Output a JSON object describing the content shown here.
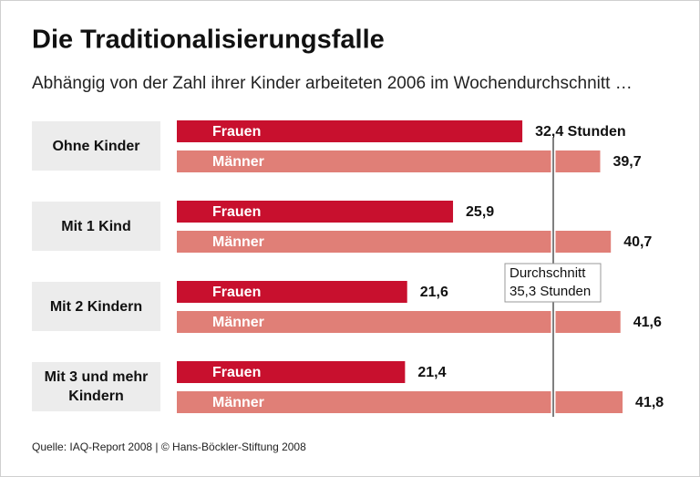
{
  "chart_data": {
    "type": "bar",
    "orientation": "horizontal",
    "title": "Die Traditionalisierungsfalle",
    "subtitle": "Abhängig von der Zahl ihrer Kinder arbeiteten 2006 im Wochendurchschnitt …",
    "categories": [
      "Ohne Kinder",
      "Mit 1 Kind",
      "Mit 2 Kindern",
      "Mit 3 und mehr Kindern"
    ],
    "series": [
      {
        "name": "Frauen",
        "color": "#c8102e",
        "values": [
          32.4,
          25.9,
          21.6,
          21.4
        ],
        "value_labels": [
          "32,4 Stunden",
          "25,9",
          "21,6",
          "21,4"
        ]
      },
      {
        "name": "Männer",
        "color": "#e07f77",
        "values": [
          39.7,
          40.7,
          41.6,
          41.8
        ],
        "value_labels": [
          "39,7",
          "40,7",
          "41,6",
          "41,8"
        ]
      }
    ],
    "xlim": [
      0,
      45
    ],
    "average": {
      "value": 35.3,
      "label_lines": [
        "Durchschnitt",
        "35,3 Stunden"
      ]
    },
    "source": "Quelle: IAQ-Report 2008 | © Hans-Böckler-Stiftung 2008"
  }
}
